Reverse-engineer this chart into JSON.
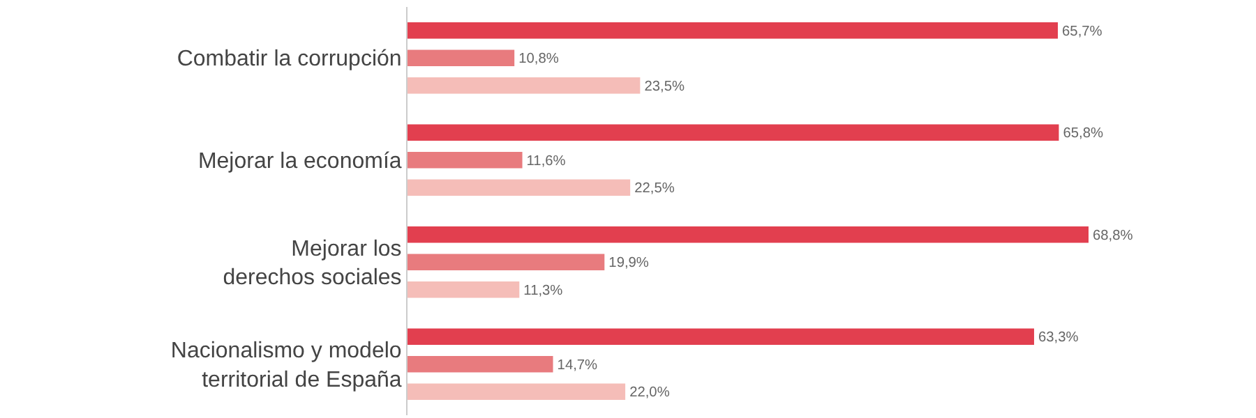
{
  "chart_data": {
    "type": "bar",
    "orientation": "horizontal",
    "categories": [
      "Combatir la corrupción",
      "Mejorar la economía",
      "Mejorar los\nderechos sociales",
      "Nacionalismo y modelo\nterritorial de España"
    ],
    "series": [
      {
        "color": "#e23f4f",
        "values": [
          65.7,
          65.8,
          68.8,
          63.3
        ],
        "value_labels": [
          "65,7%",
          "65,8%",
          "68,8%",
          "63,3%"
        ]
      },
      {
        "color": "#e87b7e",
        "values": [
          10.8,
          11.6,
          19.9,
          14.7
        ],
        "value_labels": [
          "10,8%",
          "11,6%",
          "19,9%",
          "14,7%"
        ]
      },
      {
        "color": "#f5bdb8",
        "values": [
          23.5,
          22.5,
          11.3,
          22.0
        ],
        "value_labels": [
          "23,5%",
          "22,5%",
          "11,3%",
          "22,0%"
        ]
      }
    ]
  }
}
